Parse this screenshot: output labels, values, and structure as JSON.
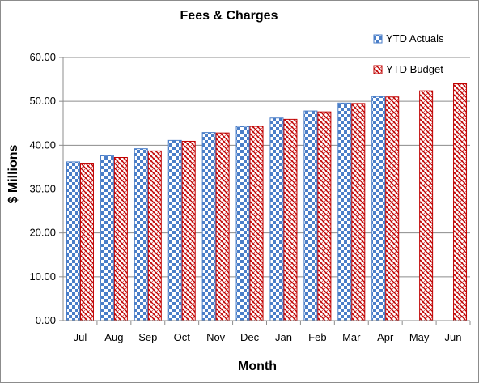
{
  "chart_data": {
    "type": "bar",
    "title": "Fees & Charges",
    "xlabel": "Month",
    "ylabel": "$ Millions",
    "ylim": [
      0,
      60
    ],
    "ytick_step": 10,
    "ytick_format_decimals": 2,
    "grid": "horizontal",
    "legend_placement": "top-right",
    "categories": [
      "Jul",
      "Aug",
      "Sep",
      "Oct",
      "Nov",
      "Dec",
      "Jan",
      "Feb",
      "Mar",
      "Apr",
      "May",
      "Jun"
    ],
    "series": [
      {
        "name": "YTD Actuals",
        "color": "#4a7ec8",
        "pattern": "checkerboard",
        "values": [
          36.2,
          37.6,
          39.2,
          41.1,
          42.9,
          44.3,
          46.2,
          47.8,
          49.6,
          51.1,
          null,
          null
        ]
      },
      {
        "name": "YTD Budget",
        "color": "#c00000",
        "pattern": "diagonal-weave",
        "values": [
          35.9,
          37.2,
          38.7,
          40.9,
          42.8,
          44.3,
          45.9,
          47.6,
          49.5,
          51.0,
          52.4,
          54.0
        ]
      }
    ]
  }
}
